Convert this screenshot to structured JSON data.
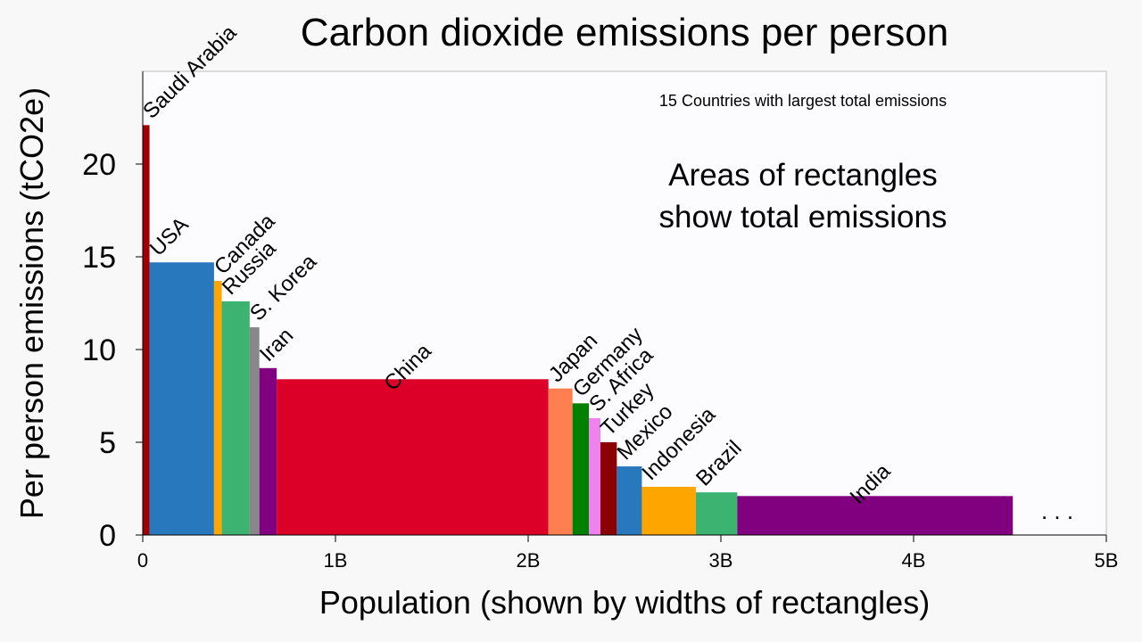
{
  "chart_data": {
    "type": "bar",
    "variant": "variable-width (Marimekko)",
    "title": "Carbon dioxide emissions per person",
    "subtitle": "15 Countries with largest total emissions",
    "annotation": "Areas of rectangles show total emissions",
    "annotation_lines": [
      "Areas of rectangles",
      "show total emissions"
    ],
    "xlabel": "Population (shown by widths of rectangles)",
    "ylabel": "Per person emissions (tCO2e)",
    "xlim": [
      0,
      5
    ],
    "ylim": [
      0,
      25
    ],
    "x_unit": "billions of people",
    "x_ticks": [
      {
        "value": 0,
        "label": "0"
      },
      {
        "value": 1,
        "label": "1B"
      },
      {
        "value": 2,
        "label": "2B"
      },
      {
        "value": 3,
        "label": "3B"
      },
      {
        "value": 4,
        "label": "4B"
      },
      {
        "value": 5,
        "label": "5B"
      }
    ],
    "y_ticks": [
      {
        "value": 0,
        "label": "0"
      },
      {
        "value": 5,
        "label": "5"
      },
      {
        "value": 10,
        "label": "10"
      },
      {
        "value": 15,
        "label": "15"
      },
      {
        "value": 20,
        "label": "20"
      }
    ],
    "continuation_marker": ". . .",
    "grid": false,
    "series": [
      {
        "name": "Saudi Arabia",
        "population": 0.035,
        "per_person": 22.1,
        "color": "#a00000"
      },
      {
        "name": "USA",
        "population": 0.335,
        "per_person": 14.7,
        "color": "#2878be"
      },
      {
        "name": "Canada",
        "population": 0.04,
        "per_person": 13.7,
        "color": "#ffa500"
      },
      {
        "name": "Russia",
        "population": 0.145,
        "per_person": 12.6,
        "color": "#3cb371"
      },
      {
        "name": "S. Korea",
        "population": 0.05,
        "per_person": 11.2,
        "color": "#888888"
      },
      {
        "name": "Iran",
        "population": 0.09,
        "per_person": 9.0,
        "color": "#800080"
      },
      {
        "name": "China",
        "population": 1.41,
        "per_person": 8.4,
        "color": "#dc0028"
      },
      {
        "name": "Japan",
        "population": 0.125,
        "per_person": 7.9,
        "color": "#ff7f50"
      },
      {
        "name": "Germany",
        "population": 0.085,
        "per_person": 7.1,
        "color": "#008000"
      },
      {
        "name": "S. Africa",
        "population": 0.06,
        "per_person": 6.3,
        "color": "#ee82ee"
      },
      {
        "name": "Turkey",
        "population": 0.085,
        "per_person": 5.0,
        "color": "#8b0000"
      },
      {
        "name": "Mexico",
        "population": 0.13,
        "per_person": 3.7,
        "color": "#2878be"
      },
      {
        "name": "Indonesia",
        "population": 0.28,
        "per_person": 2.6,
        "color": "#ffa500"
      },
      {
        "name": "Brazil",
        "population": 0.215,
        "per_person": 2.3,
        "color": "#3cb371"
      },
      {
        "name": "India",
        "population": 1.43,
        "per_person": 2.1,
        "color": "#800080"
      }
    ]
  }
}
